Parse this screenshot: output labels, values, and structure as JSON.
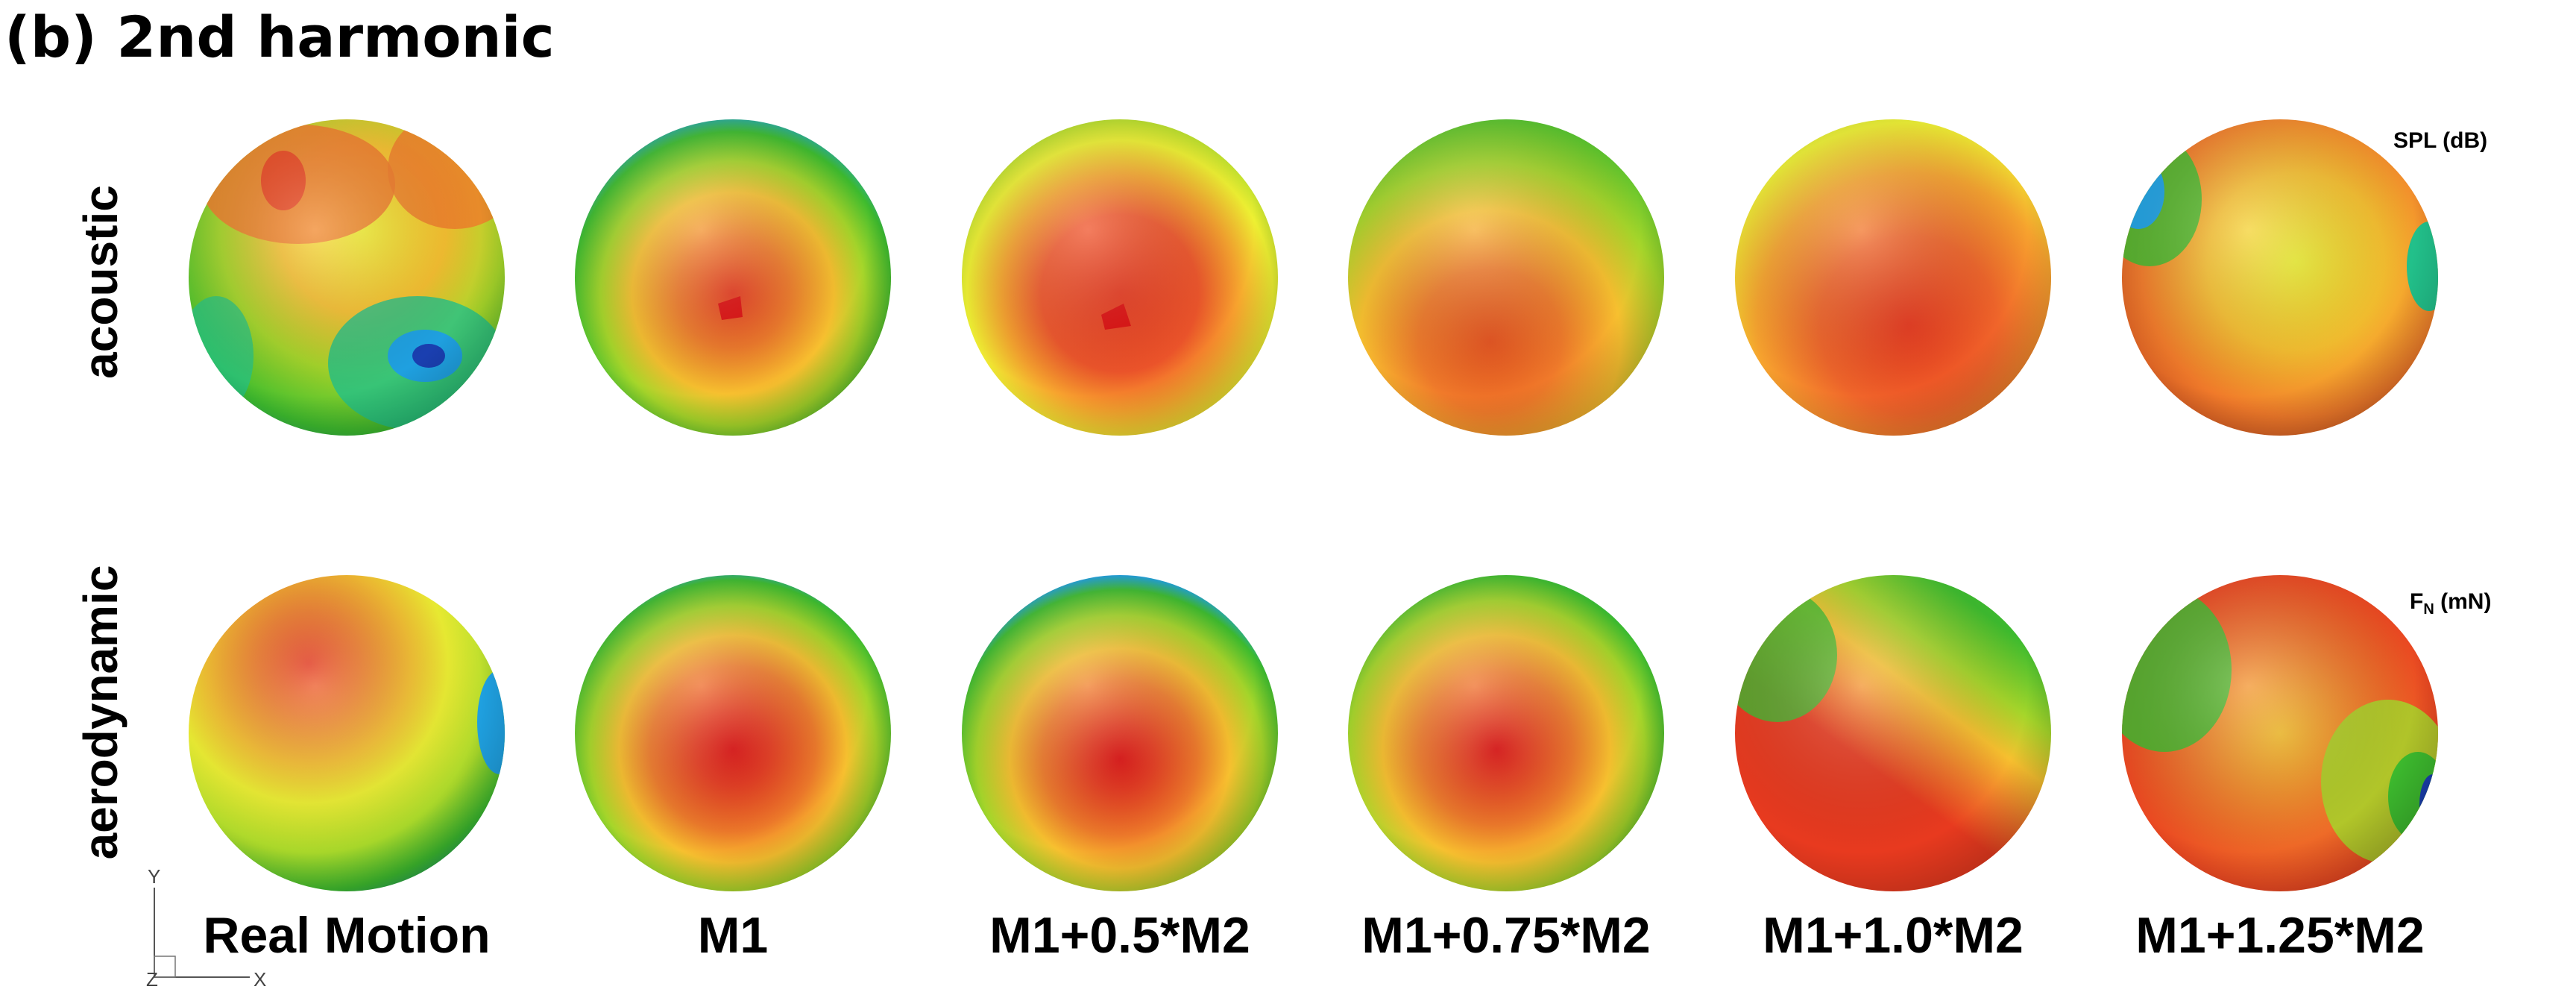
{
  "figure": {
    "title": "(b) 2nd harmonic",
    "rows": [
      {
        "label": "acoustic",
        "legend": "SPL (dB)"
      },
      {
        "label": "aerodynamic",
        "legend_main": "F",
        "legend_sub": "N",
        "legend_unit": "(mN)"
      }
    ],
    "columns": [
      "Real Motion",
      "M1",
      "M1+0.5*M2",
      "M1+0.75*M2",
      "M1+1.0*M2",
      "M1+1.25*M2"
    ],
    "axes": {
      "y": "Y",
      "x": "X",
      "z": "Z"
    },
    "colormap": [
      "#1a3fb0",
      "#1fa0e0",
      "#22c08a",
      "#3dbb2e",
      "#a6d62a",
      "#eef032",
      "#f7b52e",
      "#f07a2a",
      "#e83a1f"
    ]
  }
}
